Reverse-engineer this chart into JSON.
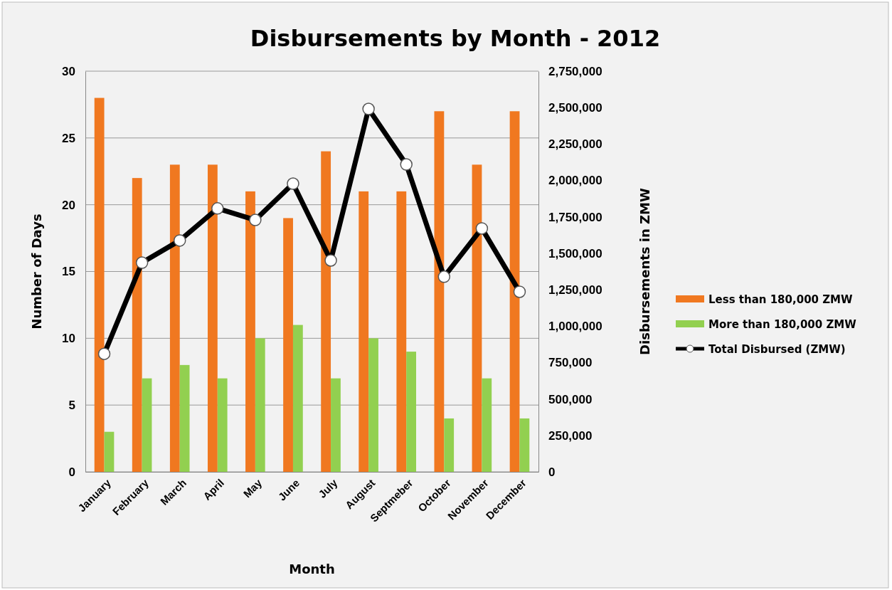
{
  "chart_data": {
    "type": "bar",
    "title": "Disbursements by Month - 2012",
    "xlabel": "Month",
    "ylabel": "Number of Days",
    "y2label": "Disbursements in ZMW",
    "categories": [
      "January",
      "February",
      "March",
      "April",
      "May",
      "June",
      "July",
      "August",
      "Septmeber",
      "October",
      "November",
      "December"
    ],
    "series": [
      {
        "name": "Less than 180,000  ZMW",
        "color": "#f07820",
        "values": [
          28,
          22,
          23,
          23,
          21,
          19,
          24,
          21,
          21,
          27,
          23,
          27
        ]
      },
      {
        "name": "More than 180,000  ZMW",
        "color": "#92d050",
        "values": [
          3,
          7,
          8,
          7,
          10,
          11,
          7,
          10,
          9,
          4,
          7,
          4
        ]
      },
      {
        "name": "Total Disbursed (ZMW)",
        "type": "line",
        "axis": "y2",
        "color": "#000000",
        "marker": "circle",
        "values": [
          810000,
          1436000,
          1588000,
          1808000,
          1729000,
          1978000,
          1451000,
          2491000,
          2110000,
          1339000,
          1671000,
          1236000
        ]
      }
    ],
    "ylim": [
      0,
      30
    ],
    "yticks": [
      0,
      5,
      10,
      15,
      20,
      25,
      30
    ],
    "y2lim": [
      0,
      2750000
    ],
    "y2ticks": [
      0,
      {
        "value": 250000,
        "label": "250,000"
      },
      {
        "value": 500000,
        "label": "500,000"
      },
      {
        "value": 750000,
        "label": "750,000"
      },
      {
        "value": 1000000,
        "label": "1,000,000"
      },
      {
        "value": 1250000,
        "label": "1,250,000"
      },
      {
        "value": 1500000,
        "label": "1,500,000"
      },
      {
        "value": 1750000,
        "label": "1,750,000"
      },
      {
        "value": 2000000,
        "label": "2,000,000"
      },
      {
        "value": 2250000,
        "label": "2,250,000"
      },
      {
        "value": 2500000,
        "label": "2,500,000"
      },
      {
        "value": 2750000,
        "label": "2,750,000"
      }
    ],
    "grid": "y",
    "legend": "right"
  }
}
